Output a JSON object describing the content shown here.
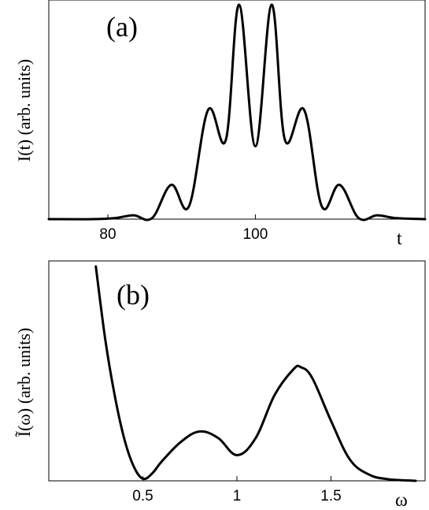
{
  "chart_data": [
    {
      "type": "line",
      "panel_label": "(a)",
      "xlabel": "t",
      "ylabel": "I(t) (arb. units)",
      "xlim": [
        72,
        123
      ],
      "ylim": [
        0,
        1.0
      ],
      "x_ticks": [
        80,
        100
      ],
      "y_ticks": [],
      "grid": false,
      "series": [
        {
          "x": [
            72,
            78,
            81,
            83.5,
            86,
            88.6,
            91,
            93.6,
            96,
            97.8,
            100,
            102.2,
            104,
            106.6,
            109,
            111.4,
            114,
            116.5,
            119,
            123
          ],
          "y": [
            0.0,
            0.0,
            0.005,
            0.018,
            0.005,
            0.16,
            0.06,
            0.51,
            0.37,
            1.0,
            0.34,
            1.0,
            0.37,
            0.51,
            0.06,
            0.16,
            0.005,
            0.018,
            0.005,
            0.0
          ]
        }
      ]
    },
    {
      "type": "line",
      "panel_label": "(b)",
      "xlabel": "ω",
      "ylabel": "Ĩ(ω) (arb. units)",
      "xlim": [
        0.0,
        2.0
      ],
      "ylim": [
        0,
        1.0
      ],
      "x_ticks": [
        0.5,
        1,
        1.5
      ],
      "x_tick_labels": [
        "0.5",
        "1",
        "1.5"
      ],
      "y_ticks": [],
      "grid": false,
      "series": [
        {
          "x": [
            0.25,
            0.3,
            0.35,
            0.4,
            0.45,
            0.5,
            0.55,
            0.6,
            0.7,
            0.8,
            0.9,
            1.0,
            1.1,
            1.2,
            1.3,
            1.34,
            1.4,
            1.5,
            1.6,
            1.7,
            1.8,
            1.95
          ],
          "y": [
            1.0,
            0.66,
            0.4,
            0.2,
            0.07,
            0.01,
            0.035,
            0.09,
            0.18,
            0.23,
            0.2,
            0.12,
            0.2,
            0.4,
            0.52,
            0.53,
            0.48,
            0.28,
            0.1,
            0.03,
            0.008,
            0.0
          ]
        }
      ]
    }
  ]
}
